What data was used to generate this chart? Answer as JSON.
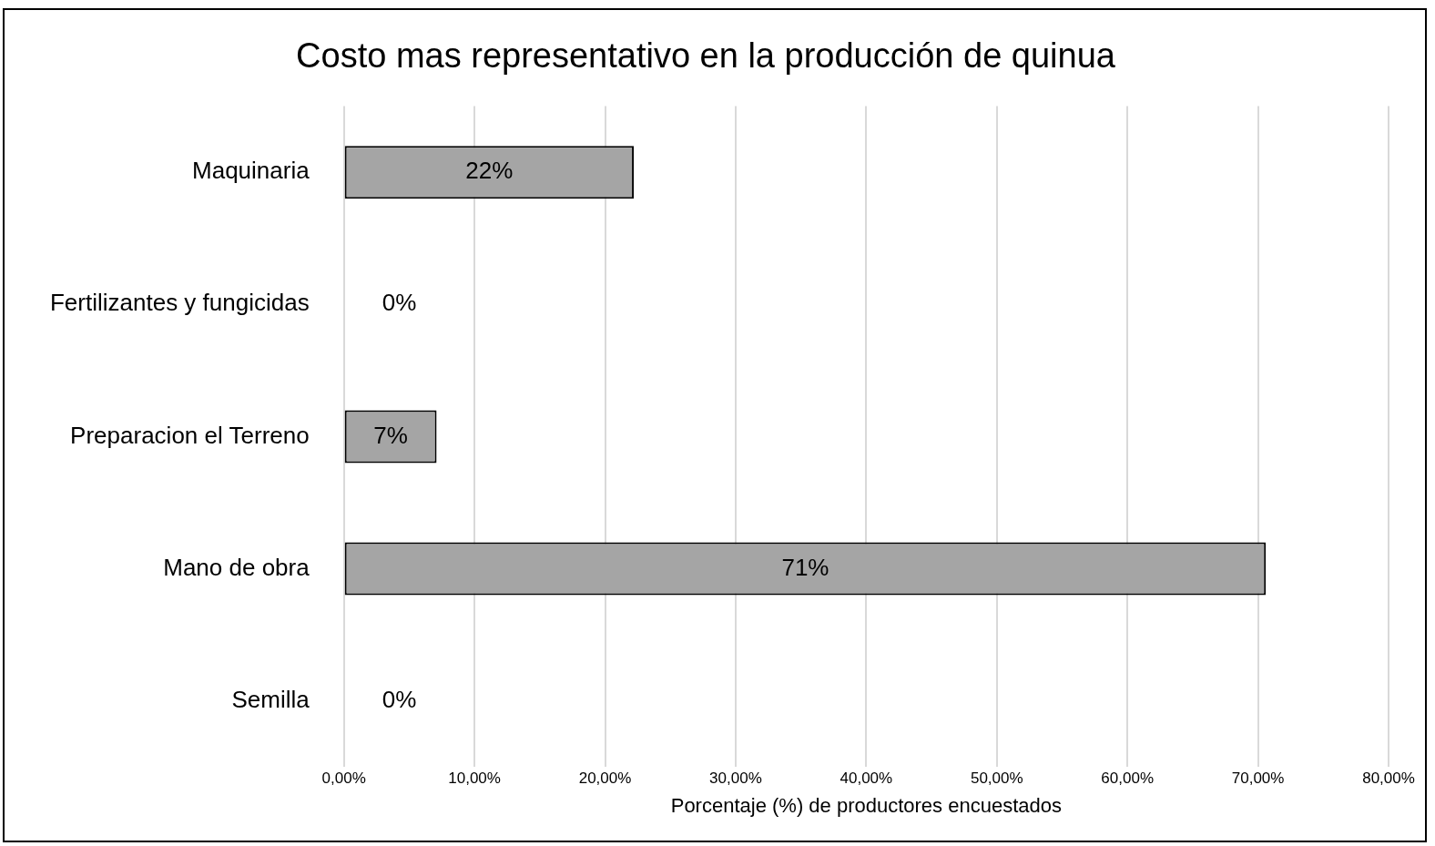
{
  "chart_data": {
    "type": "bar",
    "orientation": "horizontal",
    "title": "Costo mas representativo en la producción de quinua",
    "xlabel": "Porcentaje (%) de productores encuestados",
    "categories": [
      "Maquinaria",
      "Fertilizantes y fungicidas",
      "Preparacion el Terreno",
      "Mano de obra",
      "Semilla"
    ],
    "values": [
      22.2,
      0,
      7.1,
      70.6,
      0
    ],
    "value_labels": [
      "22%",
      "0%",
      "7%",
      "71%",
      "0%"
    ],
    "color": "#a5a5a5",
    "xlim": [
      0,
      80
    ],
    "xticks": [
      {
        "value": 0,
        "label": "0,00%"
      },
      {
        "value": 10,
        "label": "10,00%"
      },
      {
        "value": 20,
        "label": "20,00%"
      },
      {
        "value": 30,
        "label": "30,00%"
      },
      {
        "value": 40,
        "label": "40,00%"
      },
      {
        "value": 50,
        "label": "50,00%"
      },
      {
        "value": 60,
        "label": "60,00%"
      },
      {
        "value": 70,
        "label": "70,00%"
      },
      {
        "value": 80,
        "label": "80,00%"
      }
    ],
    "grid": "x",
    "legend": false
  }
}
